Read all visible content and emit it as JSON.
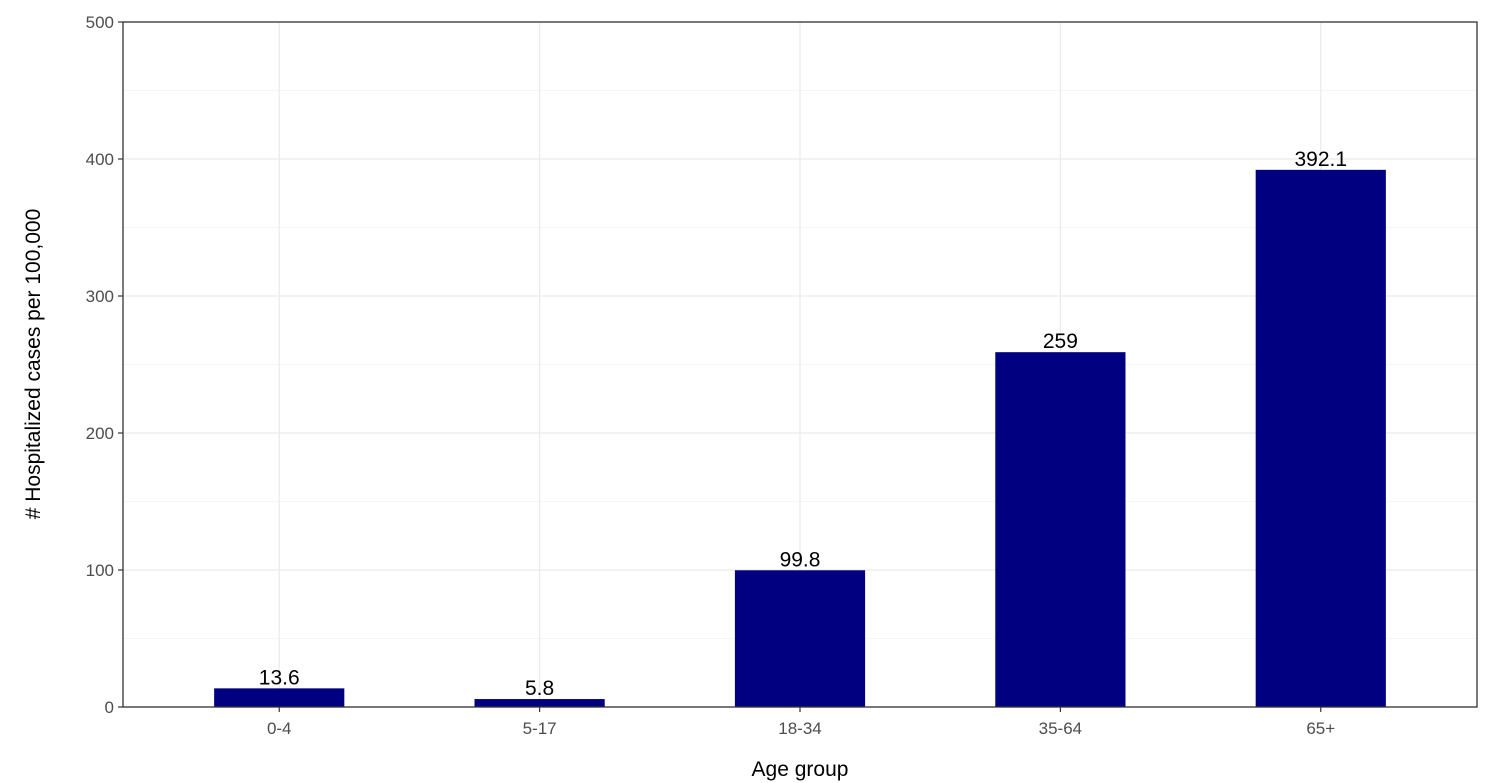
{
  "chart_data": {
    "type": "bar",
    "categories": [
      "0-4",
      "5-17",
      "18-34",
      "35-64",
      "65+"
    ],
    "values": [
      13.6,
      5.8,
      99.8,
      259,
      392.1
    ],
    "value_labels": [
      "13.6",
      "5.8",
      "99.8",
      "259",
      "392.1"
    ],
    "xlabel": "Age group",
    "ylabel": "# Hospitalized cases per 100,000",
    "ylim": [
      0,
      500
    ],
    "yticks": [
      0,
      100,
      200,
      300,
      400,
      500
    ],
    "grid": true,
    "bar_color": "#000080"
  }
}
